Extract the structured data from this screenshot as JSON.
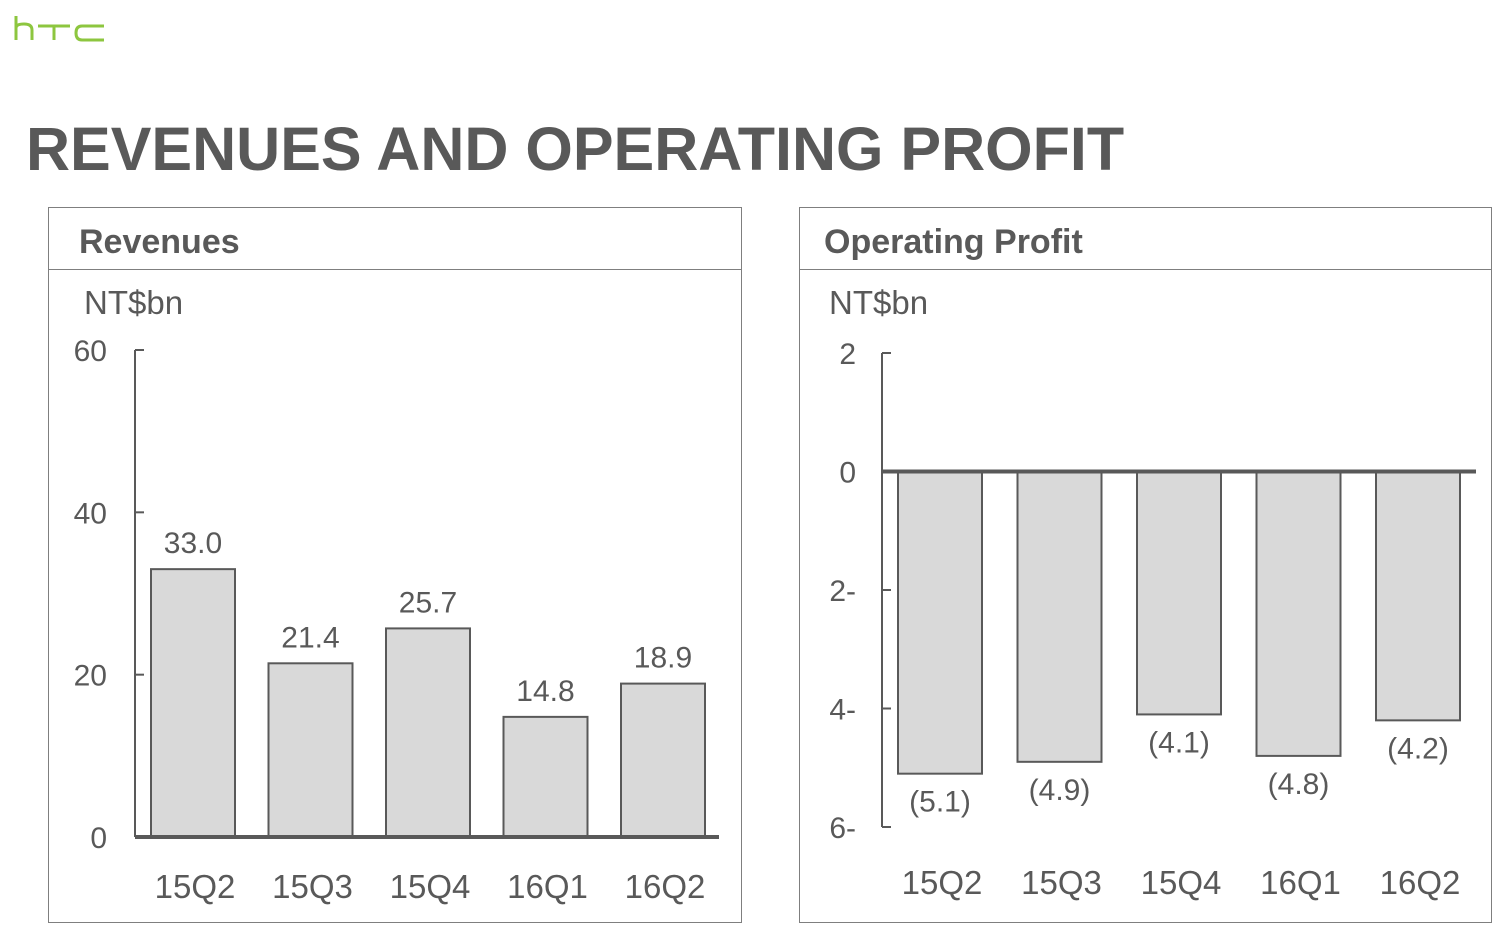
{
  "brand": {
    "logo_text": "htc",
    "logo_color": "#8dc63f"
  },
  "page": {
    "title": "REVENUES AND OPERATING PROFIT"
  },
  "colors": {
    "title": "#595959",
    "bar_fill": "#d9d9d9",
    "bar_stroke": "#595959",
    "axis": "#595959"
  },
  "chart_data": [
    {
      "type": "bar",
      "title": "Revenues",
      "unit": "NT$bn",
      "categories": [
        "15Q2",
        "15Q3",
        "15Q4",
        "16Q1",
        "16Q2"
      ],
      "values": [
        33.0,
        21.4,
        25.7,
        14.8,
        18.9
      ],
      "data_labels": [
        "33.0",
        "21.4",
        "25.7",
        "14.8",
        "18.9"
      ],
      "ylim": [
        0,
        60
      ],
      "yticks": [
        0,
        20,
        40,
        60
      ],
      "ytick_labels": [
        "0",
        "20",
        "40",
        "60"
      ],
      "grid": false,
      "legend": "none"
    },
    {
      "type": "bar",
      "title": "Operating Profit",
      "unit": "NT$bn",
      "categories": [
        "15Q2",
        "15Q3",
        "15Q4",
        "16Q1",
        "16Q2"
      ],
      "values": [
        -5.1,
        -4.9,
        -4.1,
        -4.8,
        -4.2
      ],
      "data_labels": [
        "(5.1)",
        "(4.9)",
        "(4.1)",
        "(4.8)",
        "(4.2)"
      ],
      "ylim": [
        -6,
        2
      ],
      "yticks": [
        2,
        0,
        -2,
        -4,
        -6
      ],
      "ytick_labels": [
        "2",
        "0",
        "2-",
        "4-",
        "6-"
      ],
      "grid": false,
      "legend": "none"
    }
  ]
}
